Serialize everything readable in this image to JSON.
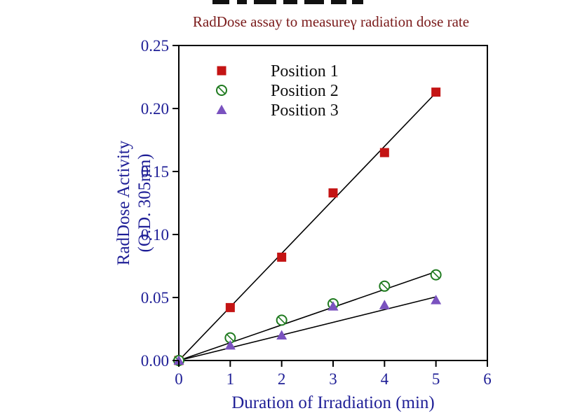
{
  "chart_data": {
    "type": "scatter",
    "title": "RadDose assay to measureγ radiation dose rate",
    "title_color": "#7a1a1a",
    "axis_text_color": "#1e1e96",
    "axis_line_color": "#000000",
    "trend_line_color": "#000000",
    "xlabel": "Duration of Irradiation (min)",
    "ylabel_lines": [
      "RadDose Activity",
      "(O.D. 305nm)"
    ],
    "xlim": [
      0,
      6
    ],
    "ylim": [
      0,
      0.25
    ],
    "xticks": {
      "values": [
        0,
        1,
        2,
        3,
        4,
        5,
        6
      ],
      "labels": [
        "0",
        "1",
        "2",
        "3",
        "4",
        "5",
        "6"
      ]
    },
    "yticks": {
      "values": [
        0,
        0.05,
        0.1,
        0.15,
        0.2,
        0.25
      ],
      "labels": [
        "0.00",
        "0.05",
        "0.10",
        "0.15",
        "0.20",
        "0.25"
      ]
    },
    "grid": false,
    "legend": {
      "position": "top-left-inside"
    },
    "series": [
      {
        "name": "Position 1",
        "marker": "square",
        "color": "#c41414",
        "x": [
          0,
          1,
          2,
          3,
          4,
          5
        ],
        "y": [
          0.0,
          0.042,
          0.082,
          0.133,
          0.165,
          0.213
        ],
        "trend": {
          "x": [
            0,
            5
          ],
          "y": [
            0,
            0.2125
          ]
        }
      },
      {
        "name": "Position 2",
        "marker": "circle-slash",
        "color": "#1f7a1f",
        "x": [
          0,
          1,
          2,
          3,
          4,
          5
        ],
        "y": [
          0.0,
          0.018,
          0.032,
          0.045,
          0.059,
          0.068
        ],
        "trend": {
          "x": [
            0,
            5
          ],
          "y": [
            0,
            0.0705
          ]
        }
      },
      {
        "name": "Position 3",
        "marker": "triangle",
        "color": "#7a52bf",
        "x": [
          0,
          1,
          2,
          3,
          4,
          5
        ],
        "y": [
          0.0,
          0.012,
          0.02,
          0.043,
          0.044,
          0.048
        ],
        "trend": {
          "x": [
            0,
            5
          ],
          "y": [
            0,
            0.0505
          ]
        }
      }
    ]
  }
}
